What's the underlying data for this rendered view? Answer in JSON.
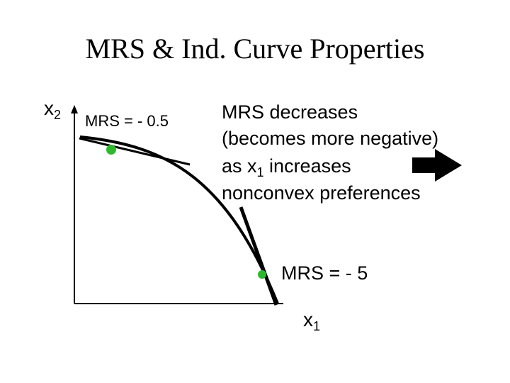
{
  "title": "MRS & Ind. Curve Properties",
  "y_axis_label": {
    "base": "x",
    "sub": "2"
  },
  "x_axis_label": {
    "base": "x",
    "sub": "1"
  },
  "top_label": "MRS = - 0.5",
  "bottom_label": "MRS = - 5",
  "notes": {
    "line1": "MRS decreases",
    "line2": "(becomes more negative)",
    "line3": {
      "before": "as x",
      "sub": "1",
      "after": " increases"
    },
    "line4": "nonconvex preferences"
  }
}
